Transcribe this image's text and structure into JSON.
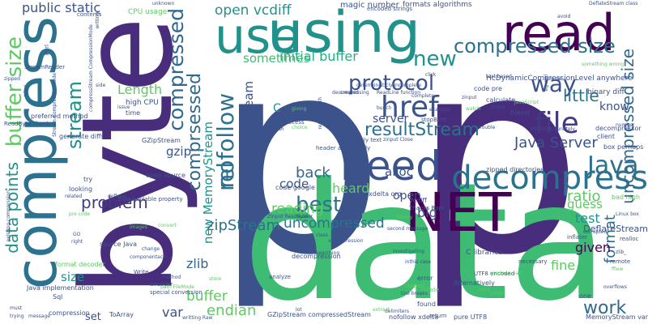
{
  "palette": {
    "dark_purple": "#440154",
    "indigo": "#472d7b",
    "blue": "#3b528b",
    "steel": "#2c728e",
    "teal": "#21918c",
    "green_teal": "#28ae80",
    "green": "#5ec962",
    "light_green": "#addc30",
    "yellow": "#d2e21b"
  },
  "words": [
    {
      "text": "p",
      "color": "#3b528b"
    },
    {
      "text": "p",
      "color": "#472d7b"
    },
    {
      "text": "data",
      "color": "#3fbc73"
    },
    {
      "text": "byte",
      "color": "#472d7b"
    },
    {
      "text": "compress",
      "color": "#2c728e"
    },
    {
      "text": "using",
      "color": "#21918c"
    },
    {
      "text": "use",
      "color": "#21918c"
    },
    {
      "text": "read",
      "color": "#440154"
    },
    {
      "text": "need",
      "color": "#3b528b"
    },
    {
      "text": "NET",
      "color": "#440154"
    },
    {
      "text": "decompress",
      "color": "#2c728e"
    },
    {
      "text": "file",
      "color": "#443a83"
    },
    {
      "text": "Java",
      "color": "#2c728e"
    },
    {
      "text": "href",
      "color": "#3b528b"
    },
    {
      "text": "protocol",
      "color": "#3b528b"
    },
    {
      "text": "compressed size",
      "color": "#2c728e"
    },
    {
      "text": "way",
      "color": "#3b528b"
    },
    {
      "text": "work",
      "color": "#31688e"
    },
    {
      "text": "data points",
      "color": "#21918c"
    },
    {
      "text": "buffer size",
      "color": "#5ec962"
    },
    {
      "text": "rel",
      "color": "#2c728e"
    },
    {
      "text": "nofollow",
      "color": "#2c728e"
    },
    {
      "text": "compressed",
      "color": "#31688e"
    },
    {
      "text": "stream",
      "color": "#21918c"
    },
    {
      "text": "uncompressed size",
      "color": "#31688e"
    },
    {
      "text": "best",
      "color": "#2c728e"
    },
    {
      "text": "new",
      "color": "#21918c"
    },
    {
      "text": "zipStream",
      "color": "#2c728e"
    },
    {
      "text": "resultStream",
      "color": "#2c728e"
    },
    {
      "text": "Java Server",
      "color": "#3b528b"
    },
    {
      "text": "format",
      "color": "#2c728e"
    },
    {
      "text": "uncompressed",
      "color": "#2c728e"
    },
    {
      "text": "little",
      "color": "#2c728e"
    },
    {
      "text": "problem",
      "color": "#443a83"
    },
    {
      "text": "comprsessed",
      "color": "#31688e"
    },
    {
      "text": "reading",
      "color": "#5ec962"
    },
    {
      "text": "heard",
      "color": "#5ec962"
    },
    {
      "text": "back",
      "color": "#31688e"
    },
    {
      "text": "public static",
      "color": "#3b528b"
    },
    {
      "text": "open vcdiff",
      "color": "#21918c"
    },
    {
      "text": "ZInputStream",
      "color": "#3b528b"
    },
    {
      "text": "new MemoryStream",
      "color": "#21918c"
    },
    {
      "text": "Length",
      "color": "#5ec962"
    },
    {
      "text": "initial buffer",
      "color": "#28ae80"
    },
    {
      "text": "sometimes",
      "color": "#3fbc73"
    },
    {
      "text": "server",
      "color": "#3b528b"
    },
    {
      "text": "ratio",
      "color": "#5ec962"
    },
    {
      "text": "test",
      "color": "#21918c"
    },
    {
      "text": "guess",
      "color": "#5ec962"
    },
    {
      "text": "given",
      "color": "#440154"
    },
    {
      "text": "fine",
      "color": "#5ec962"
    },
    {
      "text": "endian",
      "color": "#5ec962"
    },
    {
      "text": "buffer",
      "color": "#5ec962"
    },
    {
      "text": "zlib",
      "color": "#31688e"
    },
    {
      "text": "size",
      "color": "#21918c"
    },
    {
      "text": "var",
      "color": "#3b528b"
    },
    {
      "text": "set",
      "color": "#3b528b"
    },
    {
      "text": "gzip",
      "color": "#3b528b"
    },
    {
      "text": "alloc",
      "color": "#3b528b"
    },
    {
      "text": "code",
      "color": "#3b528b"
    },
    {
      "text": "open",
      "color": "#3b528b"
    },
    {
      "text": "big",
      "color": "#3b528b"
    },
    {
      "text": "know",
      "color": "#3b528b"
    },
    {
      "text": "C",
      "color": "#21918c"
    },
    {
      "text": "magic number",
      "color": "#3b528b"
    },
    {
      "text": "formats algorithms",
      "color": "#3b528b"
    },
    {
      "text": "HcDynamicCompressionLevel anywhere",
      "color": "#3b528b"
    },
    {
      "text": "binary diff",
      "color": "#3b528b"
    },
    {
      "text": "DeflateStream",
      "color": "#3b528b"
    },
    {
      "text": "C libraries",
      "color": "#3b528b"
    },
    {
      "text": "high CPU",
      "color": "#3b528b"
    },
    {
      "text": "CPU usage",
      "color": "#5ec962"
    },
    {
      "text": "StreamReader",
      "color": "#3b528b"
    },
    {
      "text": "preferred method",
      "color": "#3b528b"
    },
    {
      "text": "generate diffs",
      "color": "#3b528b"
    },
    {
      "text": "open source",
      "color": "#3b528b"
    },
    {
      "text": "Java implementation",
      "color": "#3b528b"
    },
    {
      "text": "format decoder",
      "color": "#5ec962"
    },
    {
      "text": "source Java",
      "color": "#3b528b"
    },
    {
      "text": "compression",
      "color": "#3b528b"
    },
    {
      "text": "ToArray",
      "color": "#3b528b"
    },
    {
      "text": "GZipStream compressedStream",
      "color": "#3b528b"
    },
    {
      "text": "nofollow xdelta",
      "color": "#3b528b"
    },
    {
      "text": "pure UTF8",
      "color": "#3b528b"
    },
    {
      "text": "MemoryStream var",
      "color": "#3b528b"
    },
    {
      "text": "decompression",
      "color": "#3b528b"
    },
    {
      "text": "Alternatively",
      "color": "#3b528b"
    },
    {
      "text": "found",
      "color": "#3b528b"
    },
    {
      "text": "error",
      "color": "#3b528b"
    },
    {
      "text": "GZipStream",
      "color": "#3b528b"
    },
    {
      "text": "time",
      "color": "#3b528b"
    },
    {
      "text": "code google",
      "color": "#3b528b"
    },
    {
      "text": "xdelta org",
      "color": "#3b528b"
    },
    {
      "text": "vcdiff",
      "color": "#3b528b"
    },
    {
      "text": "Thanks Bapi",
      "color": "#3b528b"
    },
    {
      "text": "encoder",
      "color": "#3b528b"
    },
    {
      "text": "Write",
      "color": "#3b528b"
    },
    {
      "text": "special conversion",
      "color": "#3b528b"
    },
    {
      "text": "Sql",
      "color": "#3b528b"
    },
    {
      "text": "try",
      "color": "#3b528b"
    },
    {
      "text": "related",
      "color": "#3b528b"
    },
    {
      "text": "deflater",
      "color": "#3b528b"
    },
    {
      "text": "looking",
      "color": "#3b528b"
    },
    {
      "text": "contents",
      "color": "#3b528b"
    },
    {
      "text": "Perl",
      "color": "#3b528b"
    },
    {
      "text": "ReadByte check",
      "color": "#3b528b"
    },
    {
      "text": "code pre",
      "color": "#3b528b"
    },
    {
      "text": "calculate",
      "color": "#3b528b"
    },
    {
      "text": "friend",
      "color": "#3b528b"
    },
    {
      "text": "stopByte",
      "color": "#3b528b"
    },
    {
      "text": "header accordingly",
      "color": "#3b528b"
    },
    {
      "text": "purely text",
      "color": "#3b528b"
    },
    {
      "text": "FileAccess",
      "color": "#3b528b"
    },
    {
      "text": "Solaris",
      "color": "#3b528b"
    },
    {
      "text": "encoded strings",
      "color": "#3b528b"
    },
    {
      "text": "decompressor",
      "color": "#3b528b"
    },
    {
      "text": "client",
      "color": "#3b528b"
    },
    {
      "text": "box perhaps",
      "color": "#3b528b"
    },
    {
      "text": "inflater",
      "color": "#3b528b"
    },
    {
      "text": "remote",
      "color": "#3b528b"
    },
    {
      "text": "UTF8 encoded",
      "color": "#3b528b"
    },
    {
      "text": "necessary",
      "color": "#3b528b"
    },
    {
      "text": "return",
      "color": "#3b528b"
    },
    {
      "text": "analyze",
      "color": "#3b528b"
    },
    {
      "text": "one",
      "color": "#3b528b"
    },
    {
      "text": "zipped directories",
      "color": "#3b528b"
    },
    {
      "text": "deterministicly incomplete",
      "color": "#3b528b"
    },
    {
      "text": "DataAvailable property",
      "color": "#3b528b"
    },
    {
      "text": "bad high",
      "color": "#5ec962"
    },
    {
      "text": "Gziped",
      "color": "#5ec962"
    },
    {
      "text": "inflate",
      "color": "#5ec962"
    },
    {
      "text": "line breaks",
      "color": "#3b528b"
    },
    {
      "text": "images",
      "color": "#5ec962"
    },
    {
      "text": "ZInput ReadByte",
      "color": "#3b528b"
    },
    {
      "text": "Edit Unfortunately",
      "color": "#3b528b"
    },
    {
      "text": "header",
      "color": "#3b528b"
    },
    {
      "text": "decompressing",
      "color": "#3b528b"
    },
    {
      "text": "ReadLine function",
      "color": "#3b528b"
    },
    {
      "text": "complete",
      "color": "#3b528b"
    },
    {
      "text": "realloc",
      "color": "#3b528b"
    },
    {
      "text": "Linux box",
      "color": "#3b528b"
    },
    {
      "text": "second message",
      "color": "#3b528b"
    },
    {
      "text": "investigating",
      "color": "#3b528b"
    },
    {
      "text": "inthis case",
      "color": "#3b528b"
    },
    {
      "text": "zinput Close",
      "color": "#3b528b"
    },
    {
      "text": "used",
      "color": "#5ec962"
    },
    {
      "text": "overflows",
      "color": "#3b528b"
    },
    {
      "text": "initial",
      "color": "#5ec962"
    },
    {
      "text": "delimiters",
      "color": "#3b528b"
    },
    {
      "text": "writting Raw",
      "color": "#3b528b"
    },
    {
      "text": "trying",
      "color": "#3b528b"
    },
    {
      "text": "message",
      "color": "#3b528b"
    },
    {
      "text": "must",
      "color": "#3b528b"
    },
    {
      "text": "lot",
      "color": "#3b528b"
    },
    {
      "text": "tried",
      "color": "#3b528b"
    },
    {
      "text": "library",
      "color": "#5ec962"
    },
    {
      "text": "zinput",
      "color": "#3b528b"
    },
    {
      "text": "x compression",
      "color": "#3b528b"
    },
    {
      "text": "method",
      "color": "#3b528b"
    },
    {
      "text": "store",
      "color": "#5ec962"
    },
    {
      "text": "componentace",
      "color": "#3b528b"
    },
    {
      "text": "change",
      "color": "#3b528b"
    },
    {
      "text": "convert",
      "color": "#5ec962"
    },
    {
      "text": "pre code",
      "color": "#5ec962"
    },
    {
      "text": "right",
      "color": "#3b528b"
    },
    {
      "text": "GO",
      "color": "#3b528b"
    },
    {
      "text": "class",
      "color": "#3b528b"
    },
    {
      "text": "searching",
      "color": "#3b528b"
    },
    {
      "text": "text based",
      "color": "#3b528b"
    },
    {
      "text": "zlib_",
      "color": "#3b528b"
    },
    {
      "text": "number",
      "color": "#3b528b"
    },
    {
      "text": "corrupted",
      "color": "#3b528b"
    },
    {
      "text": "avoid",
      "color": "#3b528b"
    },
    {
      "text": "JavaScript",
      "color": "#5ec962"
    },
    {
      "text": "trouble",
      "color": "#3b528b"
    },
    {
      "text": "result Length",
      "color": "#3b528b"
    },
    {
      "text": "bunch",
      "color": "#3b528b"
    },
    {
      "text": "something wrong",
      "color": "#5ec962"
    },
    {
      "text": "DeflateStream class",
      "color": "#3b528b"
    },
    {
      "text": "unknown",
      "color": "#3b528b"
    },
    {
      "text": "path FileMode",
      "color": "#5ec962"
    },
    {
      "text": "existing compression",
      "color": "#3b528b"
    },
    {
      "text": "Stream CompressionMode",
      "color": "#3b528b"
    },
    {
      "text": "compressStream CompressionMode",
      "color": "#3b528b"
    },
    {
      "text": "writing",
      "color": "#3b528b"
    },
    {
      "text": "side",
      "color": "#3b528b"
    },
    {
      "text": "issue",
      "color": "#3b528b"
    },
    {
      "text": "giving",
      "color": "#5ec962"
    },
    {
      "text": "choice",
      "color": "#5ec962"
    },
    {
      "text": "click",
      "color": "#3b528b"
    },
    {
      "text": "created",
      "color": "#3b528b"
    },
    {
      "text": "example",
      "color": "#3b528b"
    },
    {
      "text": "watch",
      "color": "#5ec962"
    },
    {
      "text": "eg xml",
      "color": "#3b528b"
    },
    {
      "text": "htm rel",
      "color": "#3b528b"
    },
    {
      "text": "zinput",
      "color": "#3b528b"
    },
    {
      "text": "zipped",
      "color": "#3b528b"
    },
    {
      "text": "extract",
      "color": "#5ec962"
    },
    {
      "text": "ffiew",
      "color": "#5ec962"
    },
    {
      "text": "windows part",
      "color": "#5ec962"
    },
    {
      "text": "stuff",
      "color": "#3b528b"
    }
  ]
}
